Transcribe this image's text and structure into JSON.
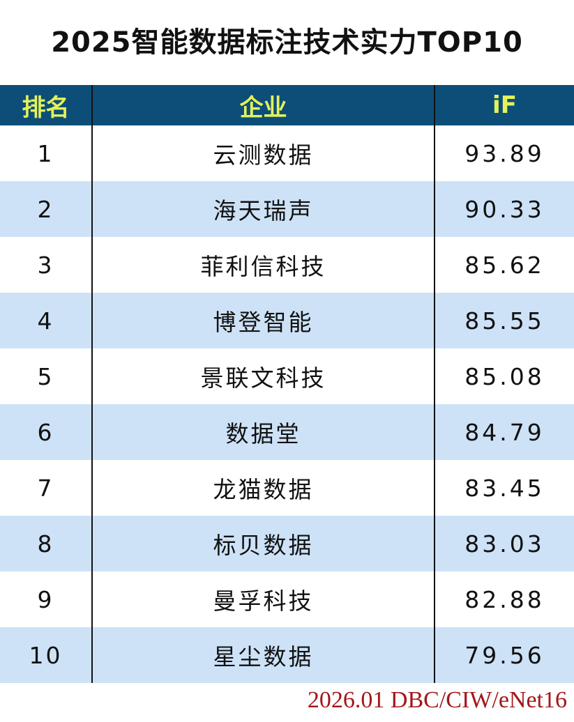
{
  "title": "2025智能数据标注技术实力TOP10",
  "footer": "2026.01 DBC/CIW/eNet16",
  "colors": {
    "header_bg": "#0d4e78",
    "header_text": "#e4f25a",
    "alt_row": "#cde2f7",
    "footer_text": "#a3161a"
  },
  "chart_data": {
    "type": "table",
    "title": "2025智能数据标注技术实力TOP10",
    "columns": [
      "排名",
      "企业",
      "iF"
    ],
    "rows": [
      [
        "1",
        "云测数据",
        "93.89"
      ],
      [
        "2",
        "海天瑞声",
        "90.33"
      ],
      [
        "3",
        "菲利信科技",
        "85.62"
      ],
      [
        "4",
        "博登智能",
        "85.55"
      ],
      [
        "5",
        "景联文科技",
        "85.08"
      ],
      [
        "6",
        "数据堂",
        "84.79"
      ],
      [
        "7",
        "龙猫数据",
        "83.45"
      ],
      [
        "8",
        "标贝数据",
        "83.03"
      ],
      [
        "9",
        "曼孚科技",
        "82.88"
      ],
      [
        "10",
        "星尘数据",
        "79.56"
      ]
    ]
  }
}
